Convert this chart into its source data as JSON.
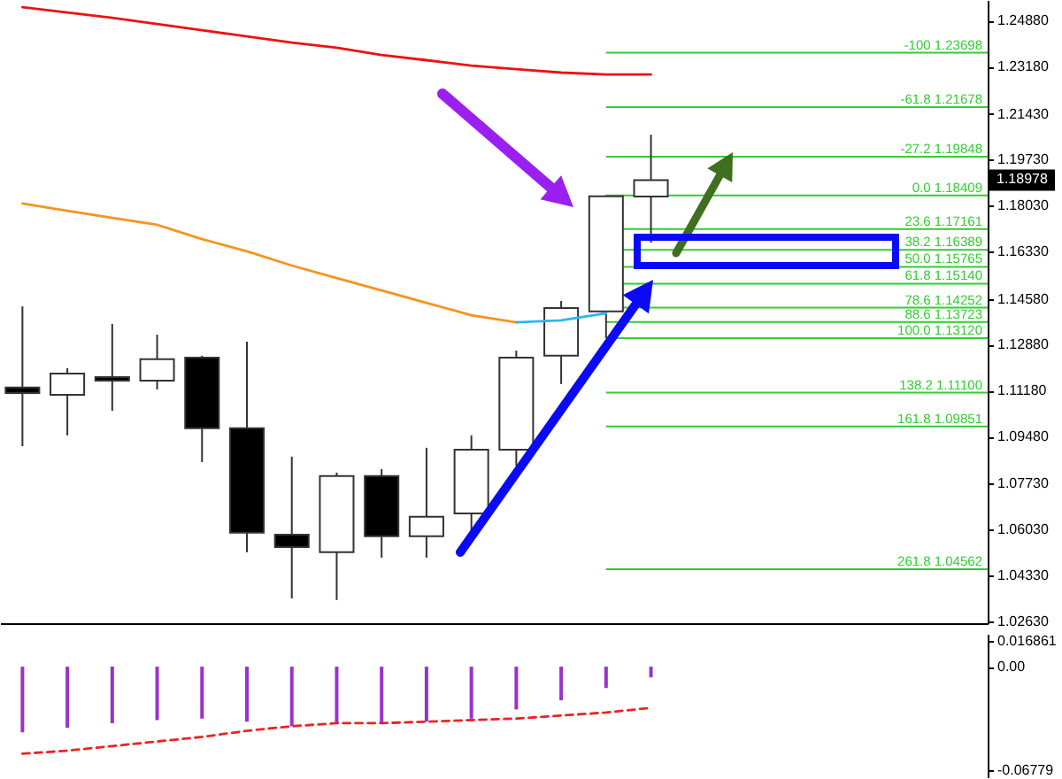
{
  "chart_data": [
    {
      "type": "candlestick",
      "categories": [
        null,
        null,
        null,
        null,
        null,
        null,
        null,
        null,
        null,
        null,
        null,
        null,
        null,
        null,
        null,
        null,
        null,
        null,
        null,
        null,
        null,
        null
      ],
      "ohlc": [
        [
          1.1129,
          1.143,
          1.0912,
          1.1109
        ],
        [
          1.1102,
          1.1201,
          1.0952,
          1.1181
        ],
        [
          1.1168,
          1.1365,
          1.1043,
          1.1155
        ],
        [
          1.1155,
          1.1325,
          1.1122,
          1.1234
        ],
        [
          1.124,
          1.1247,
          1.0853,
          1.0978
        ],
        [
          1.0978,
          1.1299,
          1.0519,
          1.0591
        ],
        [
          1.0584,
          1.0873,
          1.0348,
          1.0538
        ],
        [
          1.0519,
          1.0814,
          1.0342,
          1.0801
        ],
        [
          1.0801,
          1.0827,
          1.0499,
          1.0578
        ],
        [
          1.0578,
          1.0906,
          1.0499,
          1.065
        ],
        [
          1.0663,
          1.0952,
          1.0597,
          1.0899
        ],
        [
          1.0899,
          1.1266,
          1.084,
          1.124
        ],
        [
          1.1247,
          1.145,
          1.1142,
          1.1424
        ],
        [
          1.1411,
          1.1841,
          1.1312,
          1.1838
        ],
        [
          1.1837,
          1.2066,
          1.1666,
          1.18978
        ],
        null,
        null,
        null,
        null,
        null,
        null,
        null
      ],
      "colors": [
        "#000000",
        "#ffffff",
        "#000000",
        "#ffffff",
        "#000000",
        "#000000",
        "#000000",
        "#ffffff",
        "#000000",
        "#ffffff",
        "#ffffff",
        "#ffffff",
        "#ffffff",
        "#ffffff",
        "#ffffff",
        null,
        null,
        null,
        null,
        null,
        null,
        null
      ],
      "series": [
        {
          "type": "line",
          "color": "#ee1111",
          "values": [
            1.2538,
            1.2519,
            1.2499,
            1.2476,
            1.2453,
            1.243,
            1.2407,
            1.2388,
            1.2361,
            1.2342,
            1.2322,
            1.2309,
            1.2296,
            1.2289,
            1.2289,
            null,
            null,
            null,
            null,
            null,
            null,
            null
          ]
        },
        {
          "type": "line",
          "color": "#f7931e",
          "values": [
            1.1811,
            1.1784,
            1.1758,
            1.1732,
            1.1679,
            1.1634,
            1.1581,
            1.1535,
            1.1489,
            1.1443,
            1.1397,
            1.1371,
            null,
            null,
            null,
            null,
            null,
            null,
            null,
            null,
            null,
            null
          ]
        },
        {
          "type": "line",
          "color": "#29b6f6",
          "values": [
            null,
            null,
            null,
            null,
            null,
            null,
            null,
            null,
            null,
            null,
            null,
            1.1371,
            1.1378,
            1.1404,
            null,
            null,
            null,
            null,
            null,
            null,
            null,
            null
          ]
        }
      ],
      "ylim": [
        1.0256,
        1.2565
      ],
      "yticks": [
        {
          "value": 1.2488,
          "label": "1.24880"
        },
        {
          "value": 1.2318,
          "label": "1.23180"
        },
        {
          "value": 1.2143,
          "label": "1.21430"
        },
        {
          "value": 1.1973,
          "label": "1.19730"
        },
        {
          "value": 1.1803,
          "label": "1.18030"
        },
        {
          "value": 1.1633,
          "label": "1.16330"
        },
        {
          "value": 1.1458,
          "label": "1.14580"
        },
        {
          "value": 1.1288,
          "label": "1.12880"
        },
        {
          "value": 1.1118,
          "label": "1.11180"
        },
        {
          "value": 1.0948,
          "label": "1.09480"
        },
        {
          "value": 1.0773,
          "label": "1.07730"
        },
        {
          "value": 1.0603,
          "label": "1.06030"
        },
        {
          "value": 1.0433,
          "label": "1.04330"
        },
        {
          "value": 1.0263,
          "label": "1.02630"
        }
      ],
      "tick_labels": "y",
      "ref_lines": [
        {
          "axis": "y",
          "value": 1.23698,
          "label": "-100 1.23698",
          "color": "#33cc33"
        },
        {
          "axis": "y",
          "value": 1.21678,
          "label": "-61.8 1.21678",
          "color": "#33cc33"
        },
        {
          "axis": "y",
          "value": 1.19848,
          "label": "-27.2 1.19848",
          "color": "#33cc33"
        },
        {
          "axis": "y",
          "value": 1.18409,
          "label": "0.0 1.18409",
          "color": "#33cc33"
        },
        {
          "axis": "y",
          "value": 1.17161,
          "label": "23.6 1.17161",
          "color": "#33cc33"
        },
        {
          "axis": "y",
          "value": 1.16389,
          "label": "38.2 1.16389",
          "color": "#33cc33"
        },
        {
          "axis": "y",
          "value": 1.15765,
          "label": "50.0 1.15765",
          "color": "#33cc33"
        },
        {
          "axis": "y",
          "value": 1.1514,
          "label": "61.8 1.15140",
          "color": "#33cc33"
        },
        {
          "axis": "y",
          "value": 1.14252,
          "label": "78.6 1.14252",
          "color": "#33cc33"
        },
        {
          "axis": "y",
          "value": 1.13723,
          "label": "88.6 1.13723",
          "color": "#33cc33"
        },
        {
          "axis": "y",
          "value": 1.1312,
          "label": "100.0 1.13120",
          "color": "#33cc33"
        },
        {
          "axis": "y",
          "value": 1.111,
          "label": "138.2 1.11100",
          "color": "#33cc33"
        },
        {
          "axis": "y",
          "value": 1.09851,
          "label": "161.8 1.09851",
          "color": "#33cc33"
        },
        {
          "axis": "y",
          "value": 1.04562,
          "label": "261.8 1.04562",
          "color": "#33cc33"
        }
      ],
      "annotations": [
        {
          "text": "1.18978",
          "y": 1.18978
        }
      ]
    },
    {
      "type": "bar",
      "categories": [
        null,
        null,
        null,
        null,
        null,
        null,
        null,
        null,
        null,
        null,
        null,
        null,
        null,
        null,
        null,
        null,
        null,
        null,
        null,
        null,
        null,
        null
      ],
      "series": [
        {
          "color": "#9933cc",
          "values": [
            -0.043,
            -0.04,
            -0.037,
            -0.035,
            -0.034,
            -0.036,
            -0.039,
            -0.037,
            -0.037,
            -0.036,
            -0.034,
            -0.028,
            -0.022,
            -0.014,
            -0.007,
            null,
            null,
            null,
            null,
            null,
            null,
            null
          ]
        },
        {
          "type": "line",
          "color": "#ee2222",
          "line_style": "dashed",
          "values": [
            -0.057,
            -0.055,
            -0.052,
            -0.049,
            -0.046,
            -0.042,
            -0.039,
            -0.037,
            -0.037,
            -0.036,
            -0.035,
            -0.034,
            -0.032,
            -0.03,
            -0.027,
            null,
            null,
            null,
            null,
            null,
            null,
            null
          ]
        }
      ],
      "ylim": [
        -0.0724,
        0.0215
      ],
      "yticks": [
        0.016861,
        {
          "value": 0,
          "label": "0.00"
        },
        -0.06779
      ],
      "tick_labels": "y"
    }
  ]
}
